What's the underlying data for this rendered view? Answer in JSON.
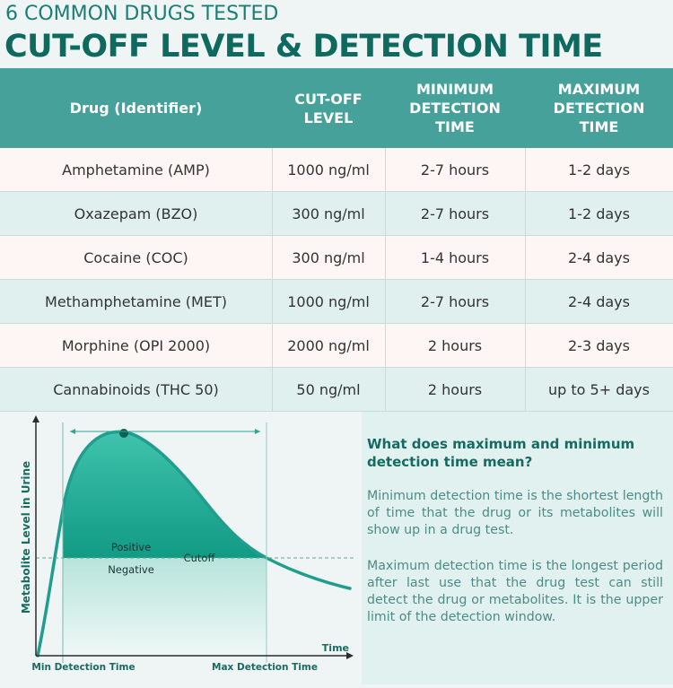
{
  "header": {
    "subtitle": "6 COMMON DRUGS TESTED",
    "title": "CUT-OFF LEVEL & DETECTION TIME"
  },
  "table": {
    "columns": [
      "Drug (Identifier)",
      "CUT-OFF\nLEVEL",
      "MINIMUM\nDETECTION\nTIME",
      "MAXIMUM\nDETECTION\nTIME"
    ],
    "rows": [
      [
        "Amphetamine (AMP)",
        "1000 ng/ml",
        "2-7 hours",
        "1-2 days"
      ],
      [
        "Oxazepam (BZO)",
        "300 ng/ml",
        "2-7 hours",
        "1-2 days"
      ],
      [
        "Cocaine (COC)",
        "300 ng/ml",
        "1-4 hours",
        "2-4 days"
      ],
      [
        "Methamphetamine (MET)",
        "1000 ng/ml",
        "2-7 hours",
        "2-4 days"
      ],
      [
        "Morphine (OPI 2000)",
        "2000 ng/ml",
        "2 hours",
        "2-3 days"
      ],
      [
        "Cannabinoids (THC 50)",
        "50 ng/ml",
        "2 hours",
        "up to 5+ days"
      ]
    ]
  },
  "diagram": {
    "y_axis_label": "Metabolite Level in Urine",
    "x_axis_label": "Time",
    "positive_label": "Positive",
    "negative_label": "Negative",
    "cutoff_label": "Cutoff",
    "min_label": "Min Detection Time",
    "max_label": "Max Detection Time"
  },
  "info": {
    "question": "What does maximum and minimum detection time mean?",
    "paragraph1": "Minimum detection time is the shortest length of time that the drug or its metabolites will show up in a drug test.",
    "paragraph2": "Maximum detection time is the longest period after last use that the drug test can still detect the drug or metabolites. It is the upper limit of the detection window."
  },
  "colors": {
    "title": "#0e6a5f",
    "header_bg": "#45a199",
    "row_odd": "#fdf6f5",
    "row_even": "#dff0ee",
    "curve": "#1f9e8e",
    "fill_top": "#14a38c"
  }
}
